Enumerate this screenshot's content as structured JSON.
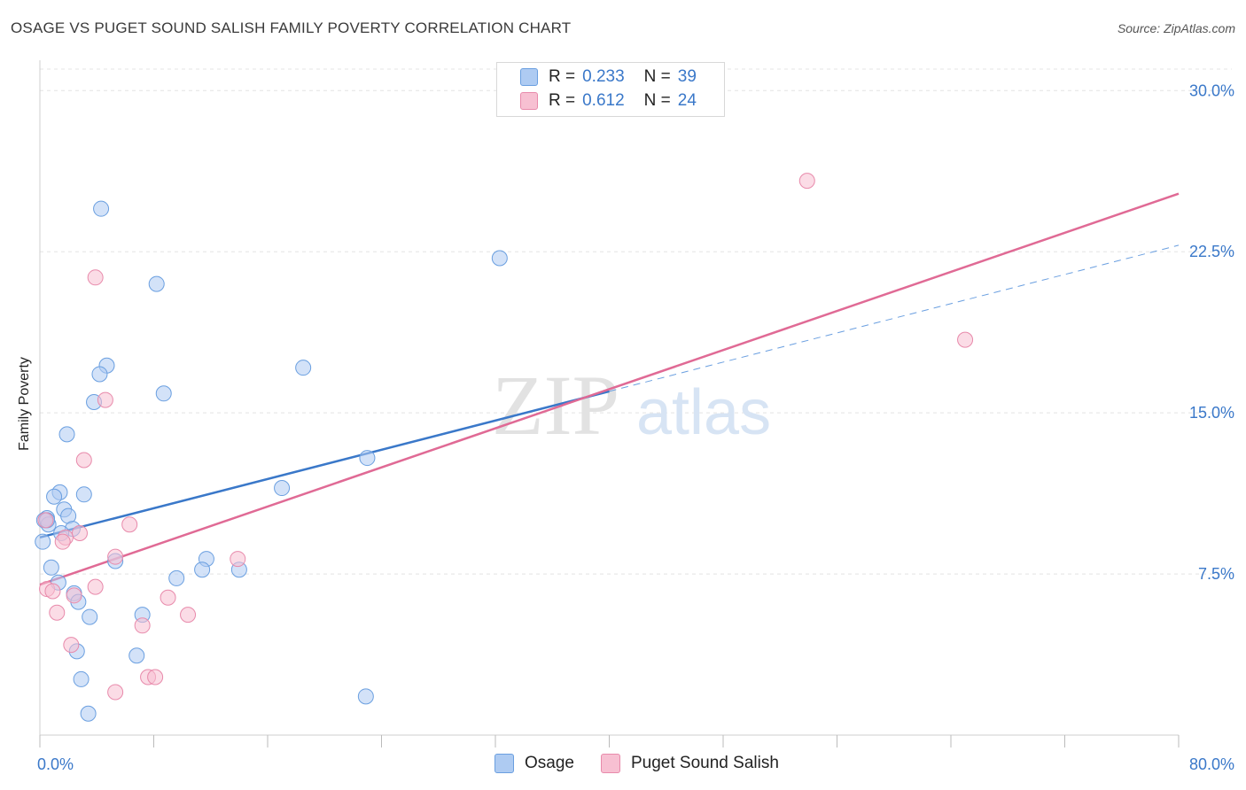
{
  "title": "OSAGE VS PUGET SOUND SALISH FAMILY POVERTY CORRELATION CHART",
  "source": "Source: ZipAtlas.com",
  "watermark": {
    "zip": "ZIP",
    "atlas": "atlas"
  },
  "legend": {
    "r_label": "R =",
    "n_label": "N =",
    "series": [
      {
        "name": "Osage",
        "r": "0.233",
        "n": "39",
        "fill": "#aecbf2",
        "stroke": "#6a9fe0"
      },
      {
        "name": "Puget Sound Salish",
        "r": "0.612",
        "n": "24",
        "fill": "#f7c0d2",
        "stroke": "#e88aab"
      }
    ]
  },
  "chart_data": {
    "type": "scatter",
    "title": "OSAGE VS PUGET SOUND SALISH FAMILY POVERTY CORRELATION CHART",
    "xlabel": "",
    "ylabel": "Family Poverty",
    "xlim": [
      0,
      80
    ],
    "ylim": [
      0,
      31
    ],
    "x_tick_labels": [
      {
        "value": 0,
        "label": "0.0%"
      },
      {
        "value": 80,
        "label": "80.0%"
      }
    ],
    "y_tick_labels": [
      {
        "value": 7.5,
        "label": "7.5%"
      },
      {
        "value": 15,
        "label": "15.0%"
      },
      {
        "value": 22.5,
        "label": "22.5%"
      },
      {
        "value": 30,
        "label": "30.0%"
      }
    ],
    "series": [
      {
        "name": "Osage",
        "color": "#3a78c9",
        "trend": {
          "x0": 0,
          "y0": 9.2,
          "x1": 40,
          "y1": 16.0,
          "dash_to_x": 80,
          "dash_to_y": 22.8
        },
        "points": [
          [
            4.3,
            24.5
          ],
          [
            8.2,
            21.0
          ],
          [
            32.3,
            22.2
          ],
          [
            4.7,
            17.2
          ],
          [
            4.2,
            16.8
          ],
          [
            18.5,
            17.1
          ],
          [
            8.7,
            15.9
          ],
          [
            3.8,
            15.5
          ],
          [
            1.9,
            14.0
          ],
          [
            23.0,
            12.9
          ],
          [
            17.0,
            11.5
          ],
          [
            1.4,
            11.3
          ],
          [
            3.1,
            11.2
          ],
          [
            1.0,
            11.1
          ],
          [
            0.5,
            10.1
          ],
          [
            1.7,
            10.5
          ],
          [
            2.0,
            10.2
          ],
          [
            0.3,
            10.0
          ],
          [
            0.6,
            9.8
          ],
          [
            2.3,
            9.6
          ],
          [
            1.5,
            9.4
          ],
          [
            0.2,
            9.0
          ],
          [
            0.8,
            7.8
          ],
          [
            5.3,
            8.1
          ],
          [
            11.7,
            8.2
          ],
          [
            11.4,
            7.7
          ],
          [
            14.0,
            7.7
          ],
          [
            9.6,
            7.3
          ],
          [
            1.3,
            7.1
          ],
          [
            2.4,
            6.6
          ],
          [
            2.7,
            6.2
          ],
          [
            7.2,
            5.6
          ],
          [
            3.5,
            5.5
          ],
          [
            2.6,
            3.9
          ],
          [
            6.8,
            3.7
          ],
          [
            2.9,
            2.6
          ],
          [
            22.9,
            1.8
          ],
          [
            3.4,
            1.0
          ],
          [
            0.5,
            10.0
          ]
        ]
      },
      {
        "name": "Puget Sound Salish",
        "color": "#e06a95",
        "trend": {
          "x0": 0,
          "y0": 7.0,
          "x1": 80,
          "y1": 25.2
        },
        "points": [
          [
            53.9,
            25.8
          ],
          [
            3.9,
            21.3
          ],
          [
            65.0,
            18.4
          ],
          [
            4.6,
            15.6
          ],
          [
            3.1,
            12.8
          ],
          [
            0.4,
            10.0
          ],
          [
            6.3,
            9.8
          ],
          [
            2.8,
            9.4
          ],
          [
            1.8,
            9.2
          ],
          [
            1.6,
            9.0
          ],
          [
            5.3,
            8.3
          ],
          [
            13.9,
            8.2
          ],
          [
            3.9,
            6.9
          ],
          [
            0.5,
            6.8
          ],
          [
            0.9,
            6.7
          ],
          [
            9.0,
            6.4
          ],
          [
            2.4,
            6.5
          ],
          [
            1.2,
            5.7
          ],
          [
            10.4,
            5.6
          ],
          [
            7.2,
            5.1
          ],
          [
            2.2,
            4.2
          ],
          [
            7.6,
            2.7
          ],
          [
            8.1,
            2.7
          ],
          [
            5.3,
            2.0
          ]
        ]
      }
    ]
  }
}
